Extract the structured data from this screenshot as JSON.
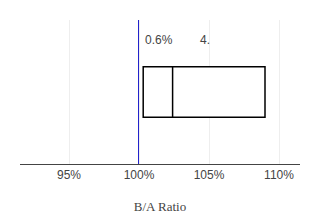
{
  "chart_data": {
    "type": "box",
    "orientation": "horizontal",
    "xlabel": "B/A Ratio",
    "xlim": [
      0.915,
      1.115
    ],
    "xticks": [
      {
        "value": 0.95,
        "label": "95%"
      },
      {
        "value": 1.0,
        "label": "100%"
      },
      {
        "value": 1.05,
        "label": "105%"
      },
      {
        "value": 1.1,
        "label": "110%"
      }
    ],
    "grid": true,
    "tick_labels": "x",
    "low": 1.003,
    "median": 1.024,
    "high": 1.09,
    "color": "#000000",
    "reference_line": {
      "x": 1.0,
      "color": "#2222cc"
    },
    "annotations": [
      {
        "text": "0.6%",
        "x": 1.003
      },
      {
        "text": "4.",
        "x": 1.042
      }
    ]
  }
}
